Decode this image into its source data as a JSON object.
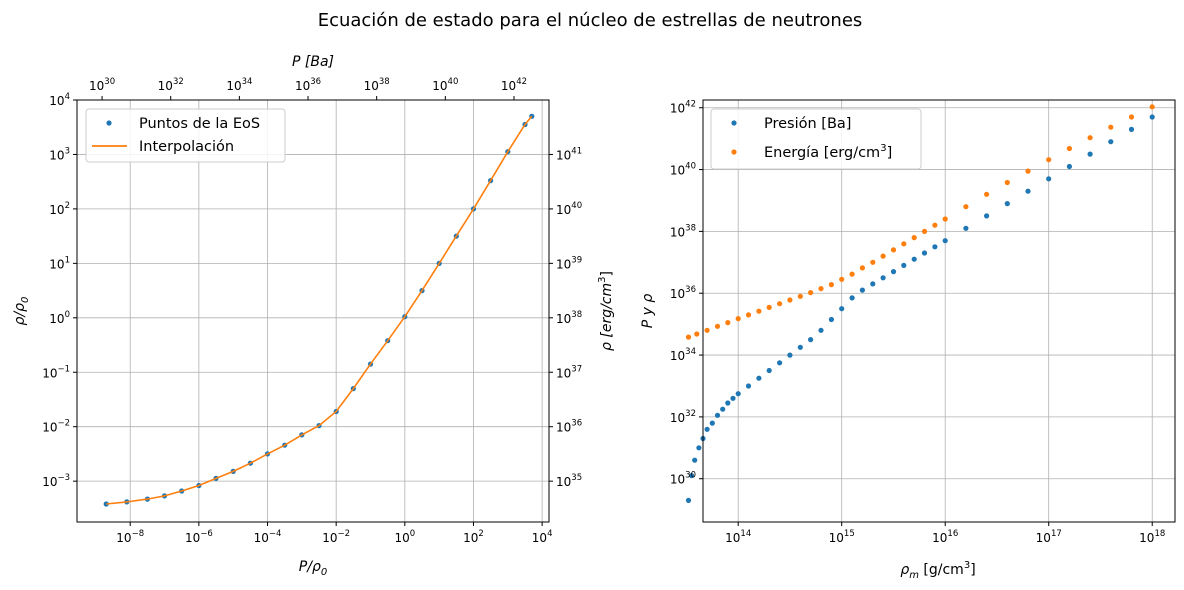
{
  "title": "Ecuación de estado para el núcleo de estrellas de neutrones",
  "colors": {
    "blue": "#1f77b4",
    "orange": "#ff7f0e",
    "grid": "#b0b0b0"
  },
  "chart_data": [
    {
      "type": "line",
      "xscale": "log",
      "yscale": "log",
      "xlabel": "P/ρ",
      "xlabel_sub": "0",
      "ylabel": "ρ/ρ",
      "ylabel_sub": "0",
      "top_xlabel": "P [Ba]",
      "right_ylabel": "ρ [erg/cm",
      "right_ylabel_sup": "3",
      "right_ylabel_end": "]",
      "xlim_exp": [
        -9.55,
        4.2
      ],
      "ylim_exp": [
        -3.75,
        4.0
      ],
      "x_ticks": [
        {
          "base": "10",
          "exp": "−8",
          "e": -8
        },
        {
          "base": "10",
          "exp": "−6",
          "e": -6
        },
        {
          "base": "10",
          "exp": "−4",
          "e": -4
        },
        {
          "base": "10",
          "exp": "−2",
          "e": -2
        },
        {
          "base": "10",
          "exp": "0",
          "e": 0
        },
        {
          "base": "10",
          "exp": "2",
          "e": 2
        },
        {
          "base": "10",
          "exp": "4",
          "e": 4
        }
      ],
      "y_ticks": [
        {
          "base": "10",
          "exp": "−3",
          "e": -3
        },
        {
          "base": "10",
          "exp": "−2",
          "e": -2
        },
        {
          "base": "10",
          "exp": "−1",
          "e": -1
        },
        {
          "base": "10",
          "exp": "0",
          "e": 0
        },
        {
          "base": "10",
          "exp": "1",
          "e": 1
        },
        {
          "base": "10",
          "exp": "2",
          "e": 2
        },
        {
          "base": "10",
          "exp": "3",
          "e": 3
        },
        {
          "base": "10",
          "exp": "4",
          "e": 4
        }
      ],
      "top_ticks": [
        {
          "base": "10",
          "exp": "30",
          "e": -8.82
        },
        {
          "base": "10",
          "exp": "32",
          "e": -6.82
        },
        {
          "base": "10",
          "exp": "34",
          "e": -4.82
        },
        {
          "base": "10",
          "exp": "36",
          "e": -2.82
        },
        {
          "base": "10",
          "exp": "38",
          "e": -0.82
        },
        {
          "base": "10",
          "exp": "40",
          "e": 1.18
        },
        {
          "base": "10",
          "exp": "42",
          "e": 3.18
        }
      ],
      "right_ticks": [
        {
          "base": "10",
          "exp": "35",
          "e": -3.0
        },
        {
          "base": "10",
          "exp": "36",
          "e": -2.0
        },
        {
          "base": "10",
          "exp": "37",
          "e": -1.0
        },
        {
          "base": "10",
          "exp": "38",
          "e": 0.0
        },
        {
          "base": "10",
          "exp": "39",
          "e": 1.0
        },
        {
          "base": "10",
          "exp": "40",
          "e": 2.0
        },
        {
          "base": "10",
          "exp": "41",
          "e": 3.0
        }
      ],
      "series": [
        {
          "name": "Puntos de la EoS",
          "marker": "point",
          "color": "#1f77b4",
          "x_exp": [
            -8.7,
            -8.1,
            -7.5,
            -7.0,
            -6.5,
            -6.0,
            -5.5,
            -5.0,
            -4.5,
            -4.0,
            -3.5,
            -3.0,
            -2.5,
            -2.0,
            -1.5,
            -1.0,
            -0.5,
            0.0,
            0.5,
            1.0,
            1.5,
            2.0,
            2.5,
            3.0,
            3.5,
            3.7
          ],
          "y_exp": [
            -3.42,
            -3.38,
            -3.33,
            -3.27,
            -3.18,
            -3.08,
            -2.95,
            -2.82,
            -2.67,
            -2.5,
            -2.34,
            -2.15,
            -1.98,
            -1.72,
            -1.3,
            -0.85,
            -0.42,
            0.02,
            0.5,
            1.0,
            1.5,
            2.0,
            2.52,
            3.05,
            3.55,
            3.7
          ]
        },
        {
          "name": "Interpolación",
          "marker": "line",
          "color": "#ff7f0e",
          "x_exp": [
            -8.7,
            -8.1,
            -7.5,
            -7.0,
            -6.5,
            -6.0,
            -5.5,
            -5.0,
            -4.5,
            -4.0,
            -3.5,
            -3.0,
            -2.5,
            -2.0,
            -1.5,
            -1.0,
            -0.5,
            0.0,
            0.5,
            1.0,
            1.5,
            2.0,
            2.5,
            3.0,
            3.5,
            3.7
          ],
          "y_exp": [
            -3.42,
            -3.38,
            -3.33,
            -3.27,
            -3.18,
            -3.08,
            -2.95,
            -2.82,
            -2.67,
            -2.5,
            -2.34,
            -2.15,
            -1.98,
            -1.72,
            -1.3,
            -0.85,
            -0.42,
            0.02,
            0.5,
            1.0,
            1.5,
            2.0,
            2.52,
            3.05,
            3.55,
            3.7
          ]
        }
      ],
      "legend": "upper-left",
      "grid": true
    },
    {
      "type": "scatter",
      "xscale": "log",
      "yscale": "log",
      "xlabel": "ρ",
      "xlabel_sub": "m",
      "xlabel_unit": " [g/cm",
      "xlabel_sup": "3",
      "xlabel_end": "]",
      "ylabel": "P y ρ",
      "xlim_exp": [
        13.66,
        18.22
      ],
      "ylim_exp": [
        28.6,
        42.25
      ],
      "x_ticks": [
        {
          "base": "10",
          "exp": "14",
          "e": 14
        },
        {
          "base": "10",
          "exp": "15",
          "e": 15
        },
        {
          "base": "10",
          "exp": "16",
          "e": 16
        },
        {
          "base": "10",
          "exp": "17",
          "e": 17
        },
        {
          "base": "10",
          "exp": "18",
          "e": 18
        }
      ],
      "y_ticks": [
        {
          "base": "10",
          "exp": "30",
          "e": 30
        },
        {
          "base": "10",
          "exp": "32",
          "e": 32
        },
        {
          "base": "10",
          "exp": "34",
          "e": 34
        },
        {
          "base": "10",
          "exp": "36",
          "e": 36
        },
        {
          "base": "10",
          "exp": "38",
          "e": 38
        },
        {
          "base": "10",
          "exp": "40",
          "e": 40
        },
        {
          "base": "10",
          "exp": "42",
          "e": 42
        }
      ],
      "series": [
        {
          "name": "Presión [Ba]",
          "marker": "point",
          "color": "#1f77b4",
          "x_exp": [
            13.52,
            13.55,
            13.58,
            13.62,
            13.66,
            13.7,
            13.75,
            13.8,
            13.85,
            13.9,
            13.95,
            14.0,
            14.1,
            14.2,
            14.3,
            14.4,
            14.5,
            14.6,
            14.7,
            14.8,
            14.9,
            15.0,
            15.1,
            15.2,
            15.3,
            15.4,
            15.5,
            15.6,
            15.7,
            15.8,
            15.9,
            16.0,
            16.2,
            16.4,
            16.6,
            16.8,
            17.0,
            17.2,
            17.4,
            17.6,
            17.8,
            18.0
          ],
          "y_exp": [
            29.3,
            30.1,
            30.6,
            31.0,
            31.3,
            31.6,
            31.8,
            32.05,
            32.25,
            32.45,
            32.6,
            32.75,
            33.0,
            33.25,
            33.5,
            33.75,
            34.0,
            34.25,
            34.5,
            34.8,
            35.15,
            35.5,
            35.85,
            36.1,
            36.3,
            36.5,
            36.7,
            36.9,
            37.1,
            37.3,
            37.5,
            37.7,
            38.1,
            38.5,
            38.9,
            39.3,
            39.7,
            40.1,
            40.5,
            40.9,
            41.3,
            41.7
          ]
        },
        {
          "name": "Energía [erg/cm",
          "name_sup": "3",
          "name_end": "]",
          "marker": "point",
          "color": "#ff7f0e",
          "x_exp": [
            13.52,
            13.6,
            13.7,
            13.8,
            13.9,
            14.0,
            14.1,
            14.2,
            14.3,
            14.4,
            14.5,
            14.6,
            14.7,
            14.8,
            14.9,
            15.0,
            15.1,
            15.2,
            15.3,
            15.4,
            15.5,
            15.6,
            15.7,
            15.8,
            15.9,
            16.0,
            16.2,
            16.4,
            16.6,
            16.8,
            17.0,
            17.2,
            17.4,
            17.6,
            17.8,
            18.0
          ],
          "y_exp": [
            34.58,
            34.68,
            34.8,
            34.93,
            35.05,
            35.18,
            35.3,
            35.42,
            35.54,
            35.66,
            35.78,
            35.9,
            36.02,
            36.15,
            36.28,
            36.45,
            36.62,
            36.82,
            37.0,
            37.2,
            37.4,
            37.6,
            37.8,
            38.0,
            38.2,
            38.4,
            38.8,
            39.2,
            39.58,
            39.95,
            40.32,
            40.68,
            41.03,
            41.37,
            41.7,
            42.03
          ]
        }
      ],
      "legend": "upper-left",
      "grid": true
    }
  ]
}
